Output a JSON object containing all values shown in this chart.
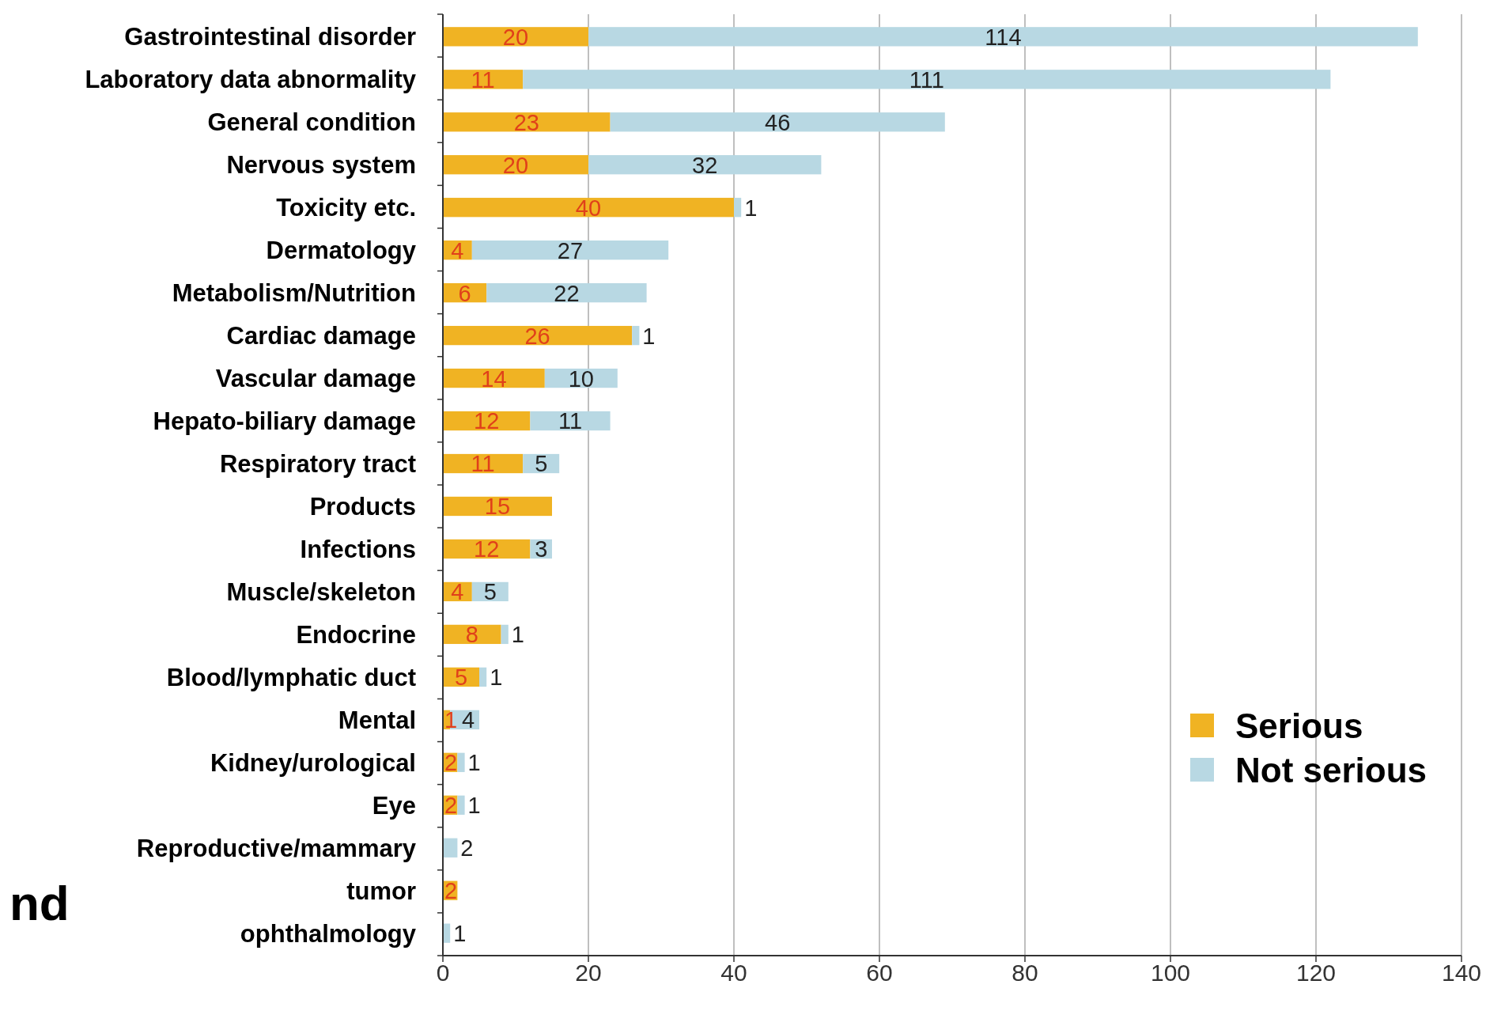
{
  "chart_data": {
    "type": "bar",
    "orientation": "horizontal",
    "stacked": true,
    "categories": [
      "Gastrointestinal disorder",
      "Laboratory data abnormality",
      "General condition",
      "Nervous system",
      "Toxicity etc.",
      "Dermatology",
      "Metabolism/Nutrition",
      "Cardiac damage",
      "Vascular damage",
      "Hepato-biliary damage",
      "Respiratory tract",
      "Products",
      "Infections",
      "Muscle/skeleton",
      "Endocrine",
      "Blood/lymphatic duct",
      "Mental",
      "Kidney/urological",
      "Eye",
      "Reproductive/mammary",
      "tumor",
      "ophthalmology"
    ],
    "series": [
      {
        "name": "Serious",
        "color": "#f0b323",
        "values": [
          20,
          11,
          23,
          20,
          40,
          4,
          6,
          26,
          14,
          12,
          11,
          15,
          12,
          4,
          8,
          5,
          1,
          2,
          2,
          null,
          2,
          null
        ]
      },
      {
        "name": "Not serious",
        "color": "#b8d8e3",
        "values": [
          114,
          111,
          46,
          32,
          1,
          27,
          22,
          1,
          10,
          11,
          5,
          null,
          3,
          5,
          1,
          1,
          4,
          1,
          1,
          2,
          null,
          1
        ]
      }
    ],
    "xlim": [
      0,
      140
    ],
    "xticks": [
      0,
      20,
      40,
      60,
      80,
      100,
      120,
      140
    ],
    "grid": "x",
    "legend": "bottom right",
    "data_labels": true,
    "annotations": [
      "nd"
    ]
  }
}
